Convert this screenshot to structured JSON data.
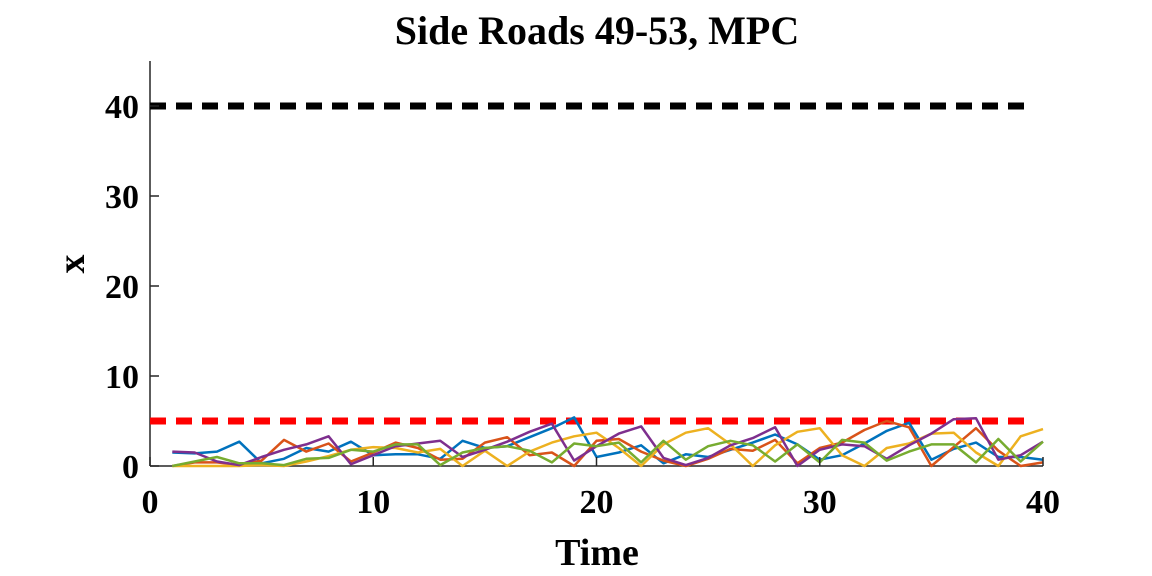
{
  "chart_data": {
    "type": "line",
    "title": "Side Roads 49-53, MPC",
    "xlabel": "Time",
    "ylabel": "x",
    "xlim": [
      0,
      40
    ],
    "ylim": [
      0,
      45
    ],
    "xticks": [
      0,
      10,
      20,
      30,
      40
    ],
    "yticks": [
      0,
      10,
      20,
      30,
      40
    ],
    "grid": false,
    "legend": "none",
    "reference_lines": [
      {
        "y": 40,
        "color": "#000000",
        "style": "dashed"
      },
      {
        "y": 5,
        "color": "#ff0000",
        "style": "dashed"
      }
    ],
    "x": [
      1,
      2,
      3,
      4,
      5,
      6,
      7,
      8,
      9,
      10,
      11,
      12,
      13,
      14,
      15,
      16,
      17,
      18,
      19,
      20,
      21,
      22,
      23,
      24,
      25,
      26,
      27,
      28,
      29,
      30,
      31,
      32,
      33,
      34,
      35,
      36,
      37,
      38,
      39,
      40
    ],
    "series": [
      {
        "color": "#0072BD",
        "values": [
          1.5,
          1.4,
          1.6,
          2.7,
          0.3,
          0.8,
          2.0,
          1.6,
          2.7,
          1.2,
          1.3,
          1.3,
          0.8,
          2.8,
          2.0,
          2.2,
          3.2,
          4.2,
          5.4,
          1.0,
          1.5,
          2.3,
          0.3,
          1.3,
          1.0,
          1.8,
          2.6,
          3.5,
          2.4,
          0.7,
          1.2,
          2.5,
          3.9,
          4.8,
          0.7,
          1.9,
          2.6,
          1.0,
          1.0,
          0.7
        ]
      },
      {
        "color": "#D95319",
        "values": [
          0.0,
          0.4,
          0.4,
          0.1,
          0.6,
          2.9,
          1.6,
          2.5,
          0.5,
          1.5,
          2.6,
          2.0,
          0.7,
          0.8,
          2.6,
          3.2,
          1.2,
          1.5,
          0.0,
          2.8,
          3.0,
          1.6,
          0.6,
          0.0,
          0.8,
          1.9,
          1.7,
          2.9,
          0.3,
          2.0,
          2.6,
          4.0,
          5.0,
          4.3,
          0.0,
          2.1,
          4.2,
          1.7,
          0.0,
          0.4
        ]
      },
      {
        "color": "#EDB120",
        "values": [
          0.0,
          0.0,
          0.0,
          0.0,
          0.1,
          0.0,
          0.5,
          1.1,
          1.8,
          2.1,
          2.0,
          1.5,
          1.9,
          0.0,
          1.7,
          0.0,
          1.6,
          2.6,
          3.3,
          3.7,
          2.0,
          0.0,
          2.4,
          3.7,
          4.2,
          2.4,
          0.0,
          2.3,
          3.8,
          4.2,
          1.2,
          0.0,
          2.0,
          2.5,
          3.6,
          3.7,
          1.5,
          0.0,
          3.3,
          4.1
        ]
      },
      {
        "color": "#7E2F8E",
        "values": [
          1.6,
          1.5,
          0.5,
          0.1,
          1.0,
          1.8,
          2.4,
          3.3,
          0.2,
          1.2,
          2.2,
          2.5,
          2.8,
          1.0,
          1.8,
          2.7,
          3.8,
          4.7,
          0.6,
          2.2,
          3.6,
          4.4,
          0.9,
          0.1,
          0.9,
          2.3,
          3.1,
          4.3,
          0.0,
          1.8,
          2.4,
          2.2,
          0.8,
          2.3,
          3.6,
          5.2,
          5.3,
          0.7,
          1.2,
          2.7
        ]
      },
      {
        "color": "#77AC30",
        "values": [
          0.0,
          0.5,
          1.0,
          0.3,
          0.3,
          0.1,
          0.8,
          0.9,
          1.8,
          1.6,
          2.4,
          2.4,
          0.1,
          1.5,
          2.0,
          2.2,
          1.7,
          0.4,
          2.5,
          2.2,
          2.6,
          0.4,
          2.8,
          0.7,
          2.2,
          2.8,
          2.3,
          0.5,
          2.4,
          0.4,
          2.9,
          2.6,
          0.6,
          1.6,
          2.4,
          2.4,
          0.4,
          3.0,
          0.5,
          2.7
        ]
      }
    ]
  }
}
